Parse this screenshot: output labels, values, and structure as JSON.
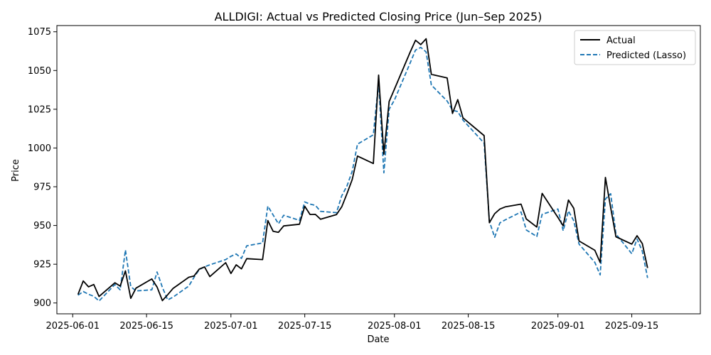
{
  "chart_data": {
    "type": "line",
    "title": "ALLDIGI: Actual vs Predicted Closing Price (Jun–Sep 2025)",
    "xlabel": "Date",
    "ylabel": "Price",
    "x_tick_labels": [
      "2025-06-01",
      "2025-06-15",
      "2025-07-01",
      "2025-07-15",
      "2025-08-01",
      "2025-08-15",
      "2025-09-01",
      "2025-09-15"
    ],
    "y_ticks": [
      900,
      925,
      950,
      975,
      1000,
      1025,
      1050,
      1075
    ],
    "xlim": [
      "2025-05-29",
      "2025-09-28"
    ],
    "ylim": [
      893,
      1079
    ],
    "grid": false,
    "legend_position": "top-right",
    "x": [
      "2025-06-02",
      "2025-06-03",
      "2025-06-04",
      "2025-06-05",
      "2025-06-06",
      "2025-06-09",
      "2025-06-10",
      "2025-06-11",
      "2025-06-12",
      "2025-06-13",
      "2025-06-16",
      "2025-06-17",
      "2025-06-18",
      "2025-06-19",
      "2025-06-20",
      "2025-06-23",
      "2025-06-24",
      "2025-06-25",
      "2025-06-26",
      "2025-06-27",
      "2025-06-30",
      "2025-07-01",
      "2025-07-02",
      "2025-07-03",
      "2025-07-04",
      "2025-07-07",
      "2025-07-08",
      "2025-07-09",
      "2025-07-10",
      "2025-07-11",
      "2025-07-14",
      "2025-07-15",
      "2025-07-16",
      "2025-07-17",
      "2025-07-18",
      "2025-07-21",
      "2025-07-22",
      "2025-07-23",
      "2025-07-24",
      "2025-07-25",
      "2025-07-28",
      "2025-07-29",
      "2025-07-30",
      "2025-07-31",
      "2025-08-01",
      "2025-08-04",
      "2025-08-05",
      "2025-08-06",
      "2025-08-07",
      "2025-08-08",
      "2025-08-11",
      "2025-08-12",
      "2025-08-13",
      "2025-08-14",
      "2025-08-18",
      "2025-08-19",
      "2025-08-20",
      "2025-08-21",
      "2025-08-22",
      "2025-08-25",
      "2025-08-26",
      "2025-08-28",
      "2025-08-29",
      "2025-09-01",
      "2025-09-02",
      "2025-09-03",
      "2025-09-04",
      "2025-09-05",
      "2025-09-08",
      "2025-09-09",
      "2025-09-10",
      "2025-09-11",
      "2025-09-12",
      "2025-09-15",
      "2025-09-16",
      "2025-09-17",
      "2025-09-18"
    ],
    "series": [
      {
        "name": "Actual",
        "color": "#000000",
        "style": "solid",
        "values": [
          905.5,
          914.2,
          910.4,
          911.9,
          904.2,
          913.0,
          910.9,
          920.7,
          903.0,
          909.6,
          915.5,
          910.3,
          901.5,
          905.3,
          909.3,
          916.6,
          917.4,
          921.9,
          923.3,
          917.0,
          926.0,
          919.0,
          924.6,
          922.0,
          928.6,
          928.0,
          953.2,
          946.3,
          945.6,
          949.7,
          950.8,
          962.4,
          957.1,
          957.2,
          954.0,
          957.0,
          962.0,
          970.5,
          979.7,
          994.8,
          990.0,
          1047.0,
          996.0,
          1030.0,
          1038.0,
          1062.0,
          1069.5,
          1066.7,
          1070.5,
          1047.5,
          1045.2,
          1022.3,
          1031.2,
          1019.4,
          1008.0,
          951.8,
          957.6,
          960.6,
          962.0,
          963.8,
          954.2,
          949.0,
          970.7,
          955.2,
          949.8,
          966.4,
          961.1,
          940.0,
          934.0,
          926.1,
          981.0,
          961.5,
          942.7,
          938.0,
          943.4,
          938.3,
          922.6
        ]
      },
      {
        "name": "Predicted (Lasso)",
        "color": "#1f77b4",
        "style": "dashed",
        "values": [
          905.0,
          907.4,
          905.6,
          904.3,
          901.3,
          911.9,
          908.5,
          934.2,
          910.6,
          907.8,
          908.5,
          920.0,
          910.1,
          902.0,
          903.7,
          910.9,
          916.6,
          921.6,
          923.3,
          924.6,
          928.0,
          930.1,
          931.6,
          928.8,
          936.9,
          938.7,
          962.5,
          956.8,
          951.1,
          956.6,
          953.3,
          965.2,
          963.8,
          963.0,
          959.1,
          958.3,
          969.1,
          975.5,
          985.0,
          1002.5,
          1008.5,
          1042.6,
          984.0,
          1025.0,
          1031.0,
          1055.0,
          1063.2,
          1064.9,
          1062.0,
          1040.6,
          1030.3,
          1024.4,
          1023.5,
          1018.0,
          1003.2,
          952.7,
          942.4,
          951.7,
          953.6,
          958.7,
          947.1,
          942.9,
          957.2,
          960.6,
          946.6,
          959.4,
          953.0,
          938.0,
          926.2,
          918.1,
          967.1,
          970.5,
          944.5,
          931.8,
          941.3,
          933.4,
          916.2
        ]
      }
    ]
  }
}
